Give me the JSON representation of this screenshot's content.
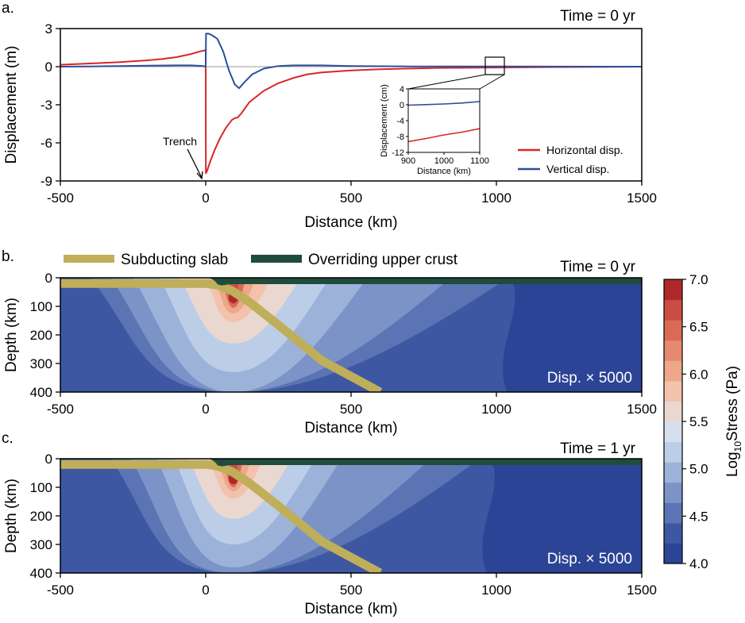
{
  "chart_data": [
    {
      "id": "a",
      "type": "line",
      "panel_label": "a.",
      "time_label": "Time = 0 yr",
      "xlabel": "Distance (km)",
      "ylabel": "Displacement (m)",
      "xlim": [
        -500,
        1500
      ],
      "ylim": [
        -9,
        3
      ],
      "xticks": [
        -500,
        0,
        500,
        1000,
        1500
      ],
      "xtick_labels": [
        "-500",
        "0",
        "500",
        "1000",
        "1500"
      ],
      "yticks": [
        3,
        0,
        -3,
        -6,
        -9
      ],
      "ytick_labels": [
        "3",
        "0",
        "-3",
        "-6",
        "-9"
      ],
      "annotation": {
        "text": "Trench",
        "x": 0,
        "y": -8.4
      },
      "series": [
        {
          "name": "Horizontal disp.",
          "color": "#d62728",
          "x": [
            -500,
            -400,
            -300,
            -200,
            -150,
            -100,
            -50,
            -20,
            0,
            0.5,
            5,
            15,
            30,
            50,
            70,
            90,
            100,
            110,
            125,
            150,
            200,
            250,
            300,
            350,
            400,
            500,
            600,
            700,
            800,
            900,
            1000,
            1200,
            1500
          ],
          "y": [
            0.15,
            0.25,
            0.35,
            0.5,
            0.6,
            0.75,
            1.0,
            1.2,
            1.3,
            -8.4,
            -8.2,
            -7.5,
            -6.6,
            -5.6,
            -4.8,
            -4.2,
            -4.05,
            -4.0,
            -3.6,
            -2.8,
            -1.9,
            -1.3,
            -0.9,
            -0.6,
            -0.45,
            -0.3,
            -0.2,
            -0.15,
            -0.1,
            -0.09,
            -0.07,
            -0.03,
            0
          ]
        },
        {
          "name": "Vertical disp.",
          "color": "#2a4f9b",
          "x": [
            -500,
            -400,
            -300,
            -200,
            -100,
            -50,
            -10,
            0,
            1,
            10,
            20,
            40,
            60,
            80,
            100,
            115,
            130,
            160,
            200,
            250,
            300,
            400,
            500,
            700,
            1000,
            1500
          ],
          "y": [
            0,
            0.02,
            0.05,
            0.08,
            0.1,
            0.1,
            0.05,
            0,
            2.6,
            2.6,
            2.5,
            2.2,
            1.2,
            -0.3,
            -1.4,
            -1.7,
            -1.3,
            -0.6,
            -0.15,
            0.05,
            0.1,
            0.1,
            0.05,
            0.02,
            0.01,
            0
          ]
        }
      ],
      "inset": {
        "xlabel": "Distance (km)",
        "ylabel": "Displacement (cm)",
        "xlim": [
          900,
          1100
        ],
        "ylim": [
          -12,
          4
        ],
        "xticks": [
          900,
          1000,
          1100
        ],
        "xtick_labels": [
          "900",
          "1000",
          "1100"
        ],
        "yticks": [
          4,
          0,
          -4,
          -8,
          -12
        ],
        "ytick_labels": [
          "4",
          "0",
          "-4",
          "-8",
          "-12"
        ],
        "series": [
          {
            "name": "Horizontal disp.",
            "color": "#d62728",
            "x": [
              900,
              950,
              1000,
              1050,
              1100
            ],
            "y": [
              -9.3,
              -8.5,
              -7.6,
              -6.9,
              -6.0
            ]
          },
          {
            "name": "Vertical disp.",
            "color": "#2a4f9b",
            "x": [
              900,
              950,
              1000,
              1050,
              1100
            ],
            "y": [
              -0.1,
              0.05,
              0.2,
              0.45,
              0.8
            ]
          }
        ]
      },
      "legend": [
        "Horizontal disp.",
        "Vertical disp."
      ]
    },
    {
      "id": "b",
      "type": "heatmap",
      "panel_label": "b.",
      "time_label": "Time = 0 yr",
      "disp_label": "Disp. × 5000",
      "xlabel": "Distance (km)",
      "ylabel": "Depth (km)",
      "xlim": [
        -500,
        1500
      ],
      "ylim": [
        0,
        400
      ],
      "xticks": [
        -500,
        0,
        500,
        1000,
        1500
      ],
      "xtick_labels": [
        "-500",
        "0",
        "500",
        "1000",
        "1500"
      ],
      "yticks": [
        0,
        100,
        200,
        300,
        400
      ],
      "ytick_labels": [
        "0",
        "100",
        "200",
        "300",
        "400"
      ],
      "stress_field": {
        "background": 4.4,
        "right_background": 4.1,
        "right_boundary_km": 1050,
        "peak_x_km": 95,
        "peak_depth_km": 70,
        "peak_value": 6.9,
        "contours": [
          {
            "level": 4.6,
            "x_left": -400,
            "x_right": 1050,
            "bottom_depth": 400
          },
          {
            "level": 4.8,
            "x_left": -330,
            "x_right": 850,
            "bottom_depth": 400
          },
          {
            "level": 5.0,
            "x_left": -250,
            "x_right": 560,
            "bottom_depth": 400
          },
          {
            "level": 5.2,
            "x_left": -160,
            "x_right": 430,
            "bottom_depth": 330
          },
          {
            "level": 5.5,
            "x_left": -90,
            "x_right": 330,
            "bottom_depth": 230
          },
          {
            "level": 5.8,
            "x_left": 0,
            "x_right": 230,
            "bottom_depth": 155
          },
          {
            "level": 6.1,
            "x_left": 30,
            "x_right": 175,
            "bottom_depth": 125
          },
          {
            "level": 6.4,
            "x_left": 55,
            "x_right": 140,
            "bottom_depth": 105
          },
          {
            "level": 6.7,
            "x_left": 75,
            "x_right": 115,
            "bottom_depth": 90
          }
        ]
      },
      "slab_path": {
        "x": [
          -500,
          0,
          40,
          90,
          150,
          250,
          400,
          600
        ],
        "depth": [
          20,
          20,
          25,
          45,
          85,
          165,
          290,
          400
        ]
      },
      "crust_path": {
        "x": [
          -40,
          40,
          100,
          1500
        ],
        "depth": [
          0,
          15,
          25,
          25
        ]
      }
    },
    {
      "id": "c",
      "type": "heatmap",
      "panel_label": "c.",
      "time_label": "Time = 1 yr",
      "disp_label": "Disp. × 5000",
      "xlabel": "Distance (km)",
      "ylabel": "Depth (km)",
      "xlim": [
        -500,
        1500
      ],
      "ylim": [
        0,
        400
      ],
      "xticks": [
        -500,
        0,
        500,
        1000,
        1500
      ],
      "xtick_labels": [
        "-500",
        "0",
        "500",
        "1000",
        "1500"
      ],
      "yticks": [
        0,
        100,
        200,
        300,
        400
      ],
      "ytick_labels": [
        "0",
        "100",
        "200",
        "300",
        "400"
      ],
      "stress_field": {
        "background": 4.35,
        "right_background": 4.05,
        "right_boundary_km": 980,
        "peak_x_km": 95,
        "peak_depth_km": 70,
        "peak_value": 6.8,
        "contours": [
          {
            "level": 4.55,
            "x_left": -330,
            "x_right": 950,
            "bottom_depth": 400
          },
          {
            "level": 4.75,
            "x_left": -260,
            "x_right": 780,
            "bottom_depth": 400
          },
          {
            "level": 5.0,
            "x_left": -170,
            "x_right": 470,
            "bottom_depth": 380
          },
          {
            "level": 5.2,
            "x_left": -110,
            "x_right": 380,
            "bottom_depth": 300
          },
          {
            "level": 5.5,
            "x_left": -60,
            "x_right": 300,
            "bottom_depth": 210
          },
          {
            "level": 5.8,
            "x_left": 10,
            "x_right": 200,
            "bottom_depth": 140
          },
          {
            "level": 6.1,
            "x_left": 40,
            "x_right": 160,
            "bottom_depth": 115
          },
          {
            "level": 6.4,
            "x_left": 60,
            "x_right": 130,
            "bottom_depth": 100
          },
          {
            "level": 6.7,
            "x_left": 78,
            "x_right": 112,
            "bottom_depth": 88
          }
        ]
      },
      "slab_path": {
        "x": [
          -500,
          0,
          40,
          90,
          150,
          250,
          400,
          600
        ],
        "depth": [
          20,
          20,
          25,
          45,
          85,
          165,
          290,
          400
        ]
      },
      "crust_path": {
        "x": [
          -40,
          40,
          100,
          1500
        ],
        "depth": [
          0,
          15,
          25,
          25
        ]
      }
    }
  ],
  "legend_top": {
    "slab_label": "Subducting slab",
    "slab_color": "#bfae5a",
    "crust_label": "Overriding upper crust",
    "crust_color": "#1f4c3c"
  },
  "colorbar": {
    "label_prefix": "Log",
    "label_sub": "10",
    "label_suffix": "Stress (Pa)",
    "min": 4.0,
    "max": 7.0,
    "ticks": [
      7.0,
      6.5,
      6.0,
      5.5,
      5.0,
      4.5,
      4.0
    ],
    "tick_labels": [
      "7.0",
      "6.5",
      "6.0",
      "5.5",
      "5.0",
      "4.5",
      "4.0"
    ],
    "colors": [
      "#2c4495",
      "#3d57a2",
      "#5a74b4",
      "#7b93c7",
      "#9db2d9",
      "#bccde8",
      "#d6e0f0",
      "#ead8d0",
      "#f2c2ad",
      "#eea78b",
      "#e58a6e",
      "#d96b55",
      "#c84e43",
      "#b0282c"
    ]
  }
}
